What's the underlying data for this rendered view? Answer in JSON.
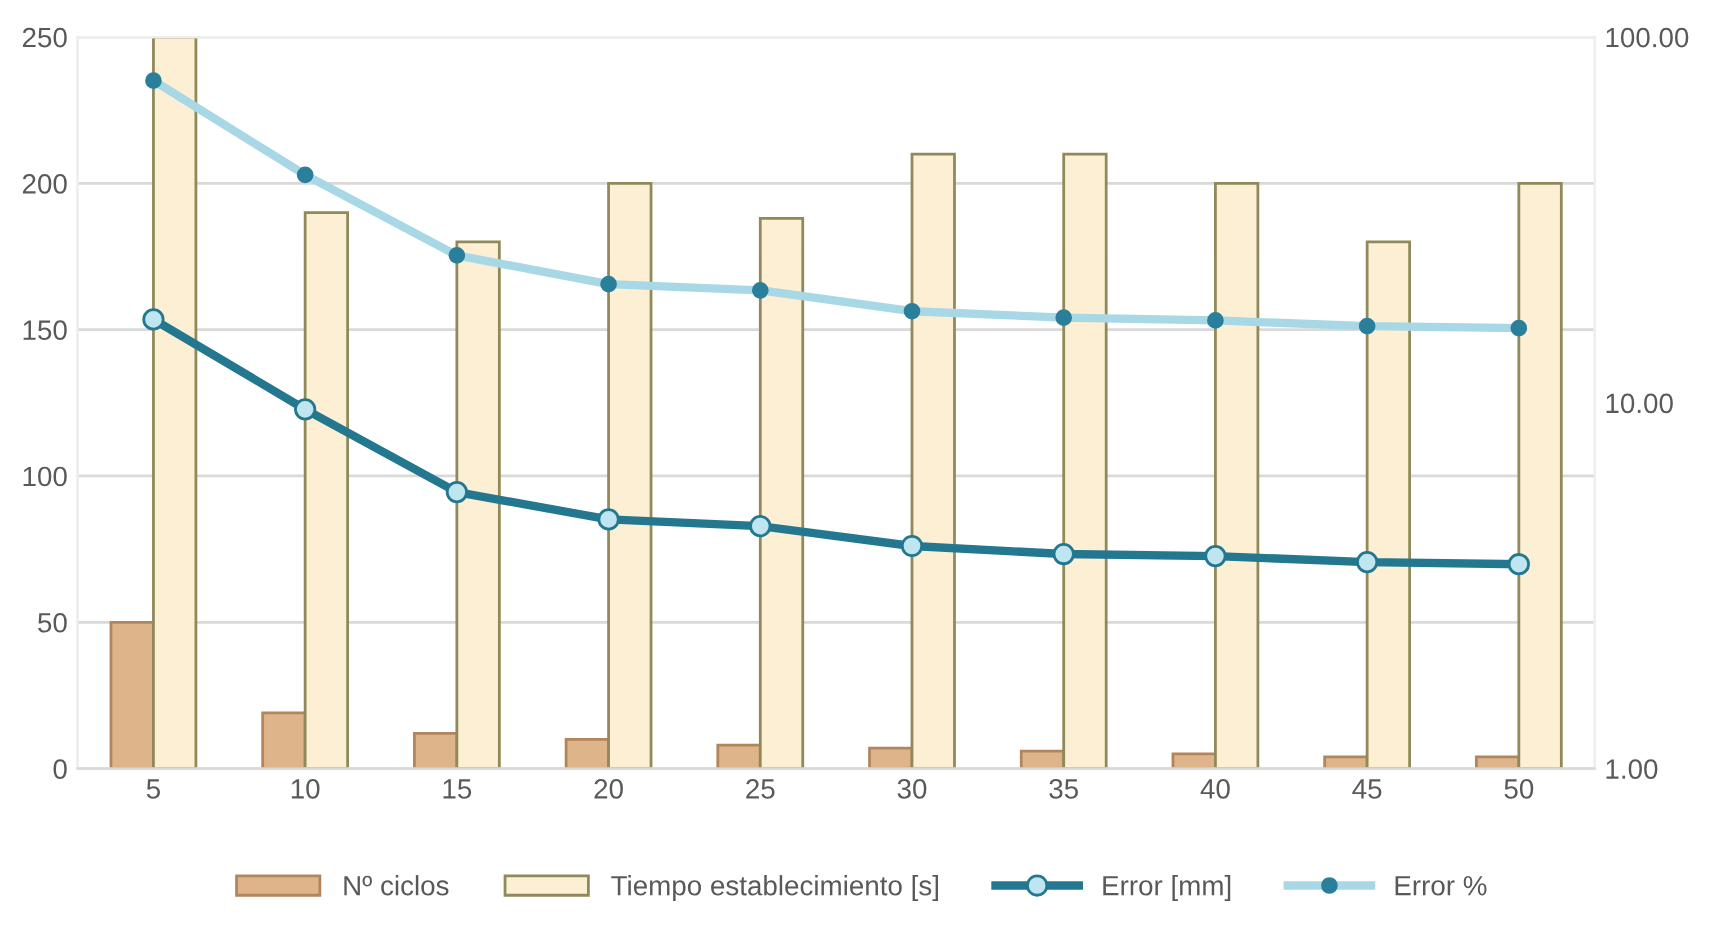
{
  "chart_data": {
    "type": "bar",
    "categories": [
      "5",
      "10",
      "15",
      "20",
      "25",
      "30",
      "35",
      "40",
      "45",
      "50"
    ],
    "series": [
      {
        "name": "Nº ciclos",
        "color": "#deb48a",
        "values": [
          50,
          19,
          12,
          10,
          8,
          7,
          6,
          5,
          4,
          4
        ]
      },
      {
        "name": "Tiempo establecimiento [s]",
        "color": "#fcefd4",
        "values": [
          250,
          190,
          180,
          200,
          188,
          210,
          210,
          200,
          180,
          200
        ]
      },
      {
        "name": "Error [mm]",
        "type": "line",
        "axis": "y2",
        "color": "#23788f",
        "values": [
          16.9,
          9.6,
          5.7,
          4.8,
          4.6,
          4.06,
          3.86,
          3.81,
          3.67,
          3.62
        ]
      },
      {
        "name": "Error %",
        "type": "line",
        "axis": "y2",
        "color": "#a8d8e6",
        "values": [
          76,
          42,
          25.3,
          21.1,
          20.3,
          17.8,
          17.1,
          16.8,
          16.2,
          16.0
        ]
      }
    ],
    "ylim": [
      0,
      250
    ],
    "yticks": [
      0,
      50,
      100,
      150,
      200,
      250
    ],
    "y2lim": [
      1,
      100
    ],
    "y2ticks": [
      {
        "value": 1,
        "label": "1.00"
      },
      {
        "value": 10,
        "label": "10.00"
      },
      {
        "value": 100,
        "label": "100.00"
      }
    ],
    "log": "y2",
    "grid": "y",
    "legend": "bottom",
    "marker": "circle"
  }
}
